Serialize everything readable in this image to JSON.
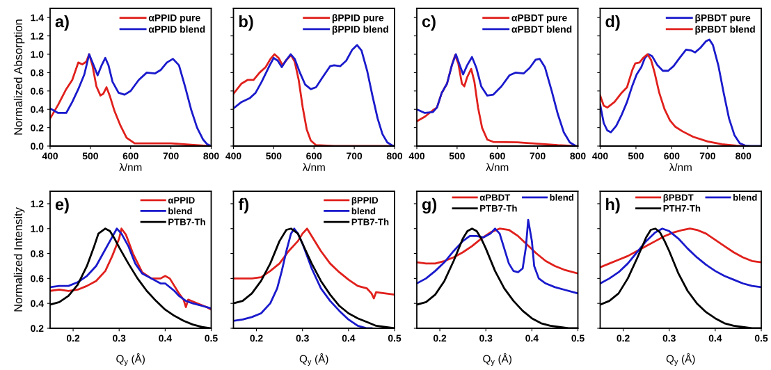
{
  "chart_data": [
    {
      "type": "line",
      "annotations": [
        "a)"
      ],
      "xlabel": "λ/nm",
      "ylabel": "Normalized Absorption",
      "xlim": [
        400,
        800
      ],
      "xticks": [
        400,
        500,
        600,
        700,
        800
      ],
      "ylim": [
        0,
        1.5
      ],
      "yticks": [
        {
          "value": 0,
          "label": "0.0"
        },
        {
          "value": 0.2,
          "label": "0.2"
        },
        {
          "value": 0.4,
          "label": "0.4"
        },
        {
          "value": 0.6,
          "label": "0.6"
        },
        {
          "value": 0.8,
          "label": "0.8"
        },
        {
          "value": 1.0,
          "label": "1.0"
        },
        {
          "value": 1.2,
          "label": "1.2"
        },
        {
          "value": 1.4,
          "label": "1.4"
        }
      ],
      "legend": "top right",
      "grid": false,
      "series": [
        {
          "name": "αPPID pure",
          "color": "#e0201c",
          "x": [
            400,
            420,
            440,
            455,
            470,
            480,
            490,
            497,
            505,
            515,
            525,
            532,
            540,
            548,
            560,
            575,
            590,
            610,
            650,
            700,
            750,
            800
          ],
          "values": [
            0.3,
            0.45,
            0.62,
            0.72,
            0.91,
            0.89,
            0.92,
            1.0,
            0.88,
            0.65,
            0.55,
            0.57,
            0.64,
            0.55,
            0.38,
            0.22,
            0.09,
            0.03,
            0.03,
            0.03,
            0.015,
            0.0
          ]
        },
        {
          "name": "αPPID blend",
          "color": "#1a1acc",
          "x": [
            400,
            420,
            440,
            455,
            470,
            485,
            497,
            508,
            518,
            528,
            537,
            545,
            555,
            570,
            585,
            600,
            620,
            640,
            660,
            675,
            690,
            705,
            720,
            735,
            750,
            765,
            780,
            790,
            800
          ],
          "values": [
            0.41,
            0.36,
            0.36,
            0.48,
            0.62,
            0.78,
            1.0,
            0.88,
            0.77,
            0.88,
            0.96,
            0.88,
            0.7,
            0.58,
            0.56,
            0.6,
            0.72,
            0.8,
            0.79,
            0.83,
            0.91,
            0.95,
            0.88,
            0.65,
            0.4,
            0.2,
            0.07,
            0.02,
            0.0
          ]
        }
      ]
    },
    {
      "type": "line",
      "annotations": [
        "b)"
      ],
      "xlabel": "λ/nm",
      "xlim": [
        400,
        800
      ],
      "xticks": [
        400,
        500,
        600,
        700,
        800
      ],
      "ylim": [
        0,
        1.5
      ],
      "yticks": [
        0,
        0.2,
        0.4,
        0.6,
        0.8,
        1,
        1.2,
        1.4
      ],
      "tick_labels": "x",
      "legend": "top right",
      "grid": false,
      "series": [
        {
          "name": "βPPID pure",
          "color": "#e0201c",
          "x": [
            400,
            420,
            435,
            450,
            465,
            480,
            492,
            502,
            512,
            522,
            532,
            543,
            552,
            562,
            572,
            582,
            592,
            605,
            650,
            800
          ],
          "values": [
            0.57,
            0.68,
            0.72,
            0.72,
            0.8,
            0.86,
            0.95,
            1.0,
            0.96,
            0.88,
            0.94,
            0.99,
            0.92,
            0.72,
            0.42,
            0.18,
            0.06,
            0.01,
            0.0,
            0.0
          ]
        },
        {
          "name": "βPPID blend",
          "color": "#1a1acc",
          "x": [
            400,
            420,
            440,
            455,
            470,
            490,
            500,
            510,
            520,
            530,
            542,
            552,
            565,
            578,
            592,
            605,
            620,
            640,
            650,
            665,
            680,
            695,
            707,
            718,
            732,
            745,
            758,
            770,
            782,
            795,
            800
          ],
          "values": [
            0.41,
            0.48,
            0.52,
            0.58,
            0.7,
            0.88,
            0.96,
            0.93,
            0.86,
            0.93,
            1.0,
            0.95,
            0.8,
            0.67,
            0.62,
            0.64,
            0.74,
            0.87,
            0.88,
            0.87,
            0.93,
            1.05,
            1.1,
            1.04,
            0.82,
            0.55,
            0.3,
            0.13,
            0.04,
            0.005,
            0.0
          ]
        }
      ]
    },
    {
      "type": "line",
      "annotations": [
        "c)"
      ],
      "xlabel": "λ/nm",
      "xlim": [
        400,
        800
      ],
      "xticks": [
        400,
        500,
        600,
        700,
        800
      ],
      "ylim": [
        0,
        1.5
      ],
      "yticks": [
        0,
        0.2,
        0.4,
        0.6,
        0.8,
        1,
        1.2,
        1.4
      ],
      "tick_labels": "x",
      "legend": "top right",
      "grid": false,
      "series": [
        {
          "name": "αPBDT pure",
          "color": "#e0201c",
          "x": [
            400,
            420,
            440,
            450,
            462,
            475,
            487,
            495,
            503,
            512,
            518,
            525,
            535,
            543,
            552,
            562,
            575,
            590,
            650,
            700,
            750,
            800
          ],
          "values": [
            0.27,
            0.32,
            0.39,
            0.42,
            0.58,
            0.68,
            0.88,
            0.99,
            0.9,
            0.68,
            0.65,
            0.75,
            0.84,
            0.7,
            0.42,
            0.2,
            0.07,
            0.045,
            0.04,
            0.025,
            0.01,
            0.0
          ]
        },
        {
          "name": "αPBDT blend",
          "color": "#1a1acc",
          "x": [
            400,
            420,
            440,
            450,
            462,
            475,
            487,
            497,
            505,
            515,
            525,
            537,
            548,
            560,
            575,
            590,
            610,
            630,
            645,
            665,
            680,
            695,
            705,
            718,
            735,
            750,
            765,
            780,
            795
          ],
          "values": [
            0.4,
            0.36,
            0.37,
            0.42,
            0.58,
            0.68,
            0.88,
            1.0,
            0.9,
            0.78,
            0.88,
            0.97,
            0.85,
            0.65,
            0.55,
            0.56,
            0.65,
            0.77,
            0.8,
            0.79,
            0.85,
            0.94,
            0.95,
            0.86,
            0.6,
            0.35,
            0.15,
            0.04,
            0.0
          ]
        }
      ]
    },
    {
      "type": "line",
      "annotations": [
        "d)"
      ],
      "xlabel": "λ/nm",
      "xlim": [
        400,
        850
      ],
      "xticks": [
        400,
        500,
        600,
        700,
        800
      ],
      "ylim": [
        0,
        1.5
      ],
      "yticks": [
        0,
        0.2,
        0.4,
        0.6,
        0.8,
        1,
        1.2,
        1.4
      ],
      "tick_labels": "x",
      "legend": "top right",
      "grid": false,
      "series": [
        {
          "name": "βPBDT pure",
          "color": "#1a1acc",
          "x": [
            400,
            410,
            420,
            430,
            445,
            460,
            475,
            490,
            502,
            515,
            525,
            535,
            545,
            560,
            575,
            590,
            605,
            620,
            640,
            655,
            665,
            680,
            695,
            705,
            715,
            730,
            745,
            760,
            775,
            790,
            805,
            820,
            850
          ],
          "values": [
            0.45,
            0.25,
            0.17,
            0.15,
            0.22,
            0.34,
            0.48,
            0.66,
            0.78,
            0.86,
            0.96,
            1.0,
            0.98,
            0.88,
            0.82,
            0.82,
            0.87,
            0.95,
            1.05,
            1.04,
            1.02,
            1.07,
            1.14,
            1.16,
            1.1,
            0.88,
            0.58,
            0.3,
            0.12,
            0.03,
            0.005,
            0.0,
            0.0
          ]
        },
        {
          "name": "βPBDT blend",
          "color": "#e0201c",
          "x": [
            400,
            410,
            420,
            440,
            460,
            475,
            490,
            498,
            510,
            520,
            532,
            542,
            552,
            565,
            580,
            595,
            610,
            630,
            660,
            700,
            740,
            780,
            800
          ],
          "values": [
            0.55,
            0.44,
            0.42,
            0.48,
            0.58,
            0.64,
            0.83,
            0.9,
            0.91,
            0.96,
            1.0,
            0.94,
            0.8,
            0.58,
            0.4,
            0.28,
            0.21,
            0.16,
            0.1,
            0.05,
            0.02,
            0.005,
            0.0
          ]
        }
      ]
    },
    {
      "type": "line",
      "annotations": [
        "e)"
      ],
      "xlabel": "Q$_{y}$ (Å)",
      "ylabel": "Normalized Intensity",
      "xlim": [
        0.15,
        0.5
      ],
      "xticks": [
        0.2,
        0.3,
        0.4,
        0.5
      ],
      "ylim": [
        0.2,
        1.3
      ],
      "yticks": [
        0.2,
        0.4,
        0.6,
        0.8,
        {
          "value": 1.0,
          "label": "1.0"
        },
        1.2
      ],
      "legend": "top right",
      "grid": false,
      "series": [
        {
          "name": "αPPID",
          "color": "#e0201c",
          "x": [
            0.15,
            0.17,
            0.19,
            0.21,
            0.23,
            0.25,
            0.27,
            0.285,
            0.3,
            0.305,
            0.315,
            0.33,
            0.35,
            0.37,
            0.39,
            0.4,
            0.41,
            0.43,
            0.44,
            0.445,
            0.45,
            0.47,
            0.49,
            0.5
          ],
          "values": [
            0.5,
            0.51,
            0.5,
            0.51,
            0.54,
            0.58,
            0.66,
            0.78,
            0.92,
            1.0,
            0.95,
            0.8,
            0.65,
            0.6,
            0.6,
            0.62,
            0.6,
            0.48,
            0.43,
            0.37,
            0.43,
            0.4,
            0.37,
            0.35
          ]
        },
        {
          "name": "blend",
          "color": "#1a1acc",
          "x": [
            0.15,
            0.17,
            0.19,
            0.21,
            0.23,
            0.25,
            0.265,
            0.28,
            0.295,
            0.305,
            0.32,
            0.335,
            0.35,
            0.37,
            0.39,
            0.4,
            0.42,
            0.43,
            0.445,
            0.46,
            0.48,
            0.5
          ],
          "values": [
            0.53,
            0.54,
            0.54,
            0.57,
            0.62,
            0.7,
            0.8,
            0.9,
            1.0,
            0.96,
            0.86,
            0.72,
            0.64,
            0.6,
            0.56,
            0.56,
            0.5,
            0.46,
            0.42,
            0.4,
            0.38,
            0.36
          ]
        },
        {
          "name": "PTB7-Th",
          "color": "#000000",
          "x": [
            0.15,
            0.17,
            0.19,
            0.21,
            0.23,
            0.245,
            0.255,
            0.27,
            0.28,
            0.29,
            0.3,
            0.32,
            0.34,
            0.36,
            0.38,
            0.4,
            0.42,
            0.44,
            0.46,
            0.48,
            0.5
          ],
          "values": [
            0.39,
            0.41,
            0.46,
            0.55,
            0.7,
            0.85,
            0.96,
            1.0,
            0.98,
            0.92,
            0.85,
            0.72,
            0.6,
            0.5,
            0.42,
            0.35,
            0.3,
            0.26,
            0.23,
            0.21,
            0.2
          ]
        }
      ]
    },
    {
      "type": "line",
      "annotations": [
        "f)"
      ],
      "xlabel": "Q$_{y}$ (Å)",
      "xlim": [
        0.15,
        0.5
      ],
      "xticks": [
        0.2,
        0.3,
        0.4,
        0.5
      ],
      "ylim": [
        0.2,
        1.3
      ],
      "yticks": [
        0.2,
        0.4,
        0.6,
        0.8,
        1,
        1.2
      ],
      "tick_labels": "x",
      "legend": "top right",
      "grid": false,
      "series": [
        {
          "name": "βPPID",
          "color": "#e0201c",
          "x": [
            0.15,
            0.17,
            0.19,
            0.21,
            0.23,
            0.25,
            0.27,
            0.29,
            0.3,
            0.31,
            0.32,
            0.34,
            0.36,
            0.38,
            0.4,
            0.42,
            0.44,
            0.45,
            0.455,
            0.46,
            0.48,
            0.5
          ],
          "values": [
            0.6,
            0.6,
            0.6,
            0.61,
            0.66,
            0.72,
            0.82,
            0.9,
            0.96,
            1.0,
            0.94,
            0.82,
            0.72,
            0.65,
            0.59,
            0.54,
            0.52,
            0.48,
            0.44,
            0.49,
            0.48,
            0.47
          ]
        },
        {
          "name": "blend",
          "color": "#1a1acc",
          "x": [
            0.15,
            0.17,
            0.19,
            0.21,
            0.23,
            0.245,
            0.255,
            0.265,
            0.275,
            0.282,
            0.29,
            0.3,
            0.31,
            0.32,
            0.34,
            0.36,
            0.38,
            0.4,
            0.42,
            0.44,
            0.45
          ],
          "values": [
            0.26,
            0.27,
            0.29,
            0.32,
            0.4,
            0.52,
            0.66,
            0.82,
            0.96,
            1.0,
            0.96,
            0.88,
            0.78,
            0.68,
            0.52,
            0.42,
            0.34,
            0.27,
            0.22,
            0.2,
            0.2
          ]
        },
        {
          "name": "PTB7-Th",
          "color": "#000000",
          "x": [
            0.15,
            0.17,
            0.19,
            0.21,
            0.23,
            0.25,
            0.265,
            0.275,
            0.29,
            0.3,
            0.32,
            0.34,
            0.36,
            0.38,
            0.4,
            0.42,
            0.44,
            0.46,
            0.48,
            0.5
          ],
          "values": [
            0.4,
            0.42,
            0.48,
            0.58,
            0.72,
            0.9,
            0.99,
            1.0,
            0.96,
            0.88,
            0.72,
            0.58,
            0.47,
            0.38,
            0.32,
            0.28,
            0.25,
            0.22,
            0.21,
            0.2
          ]
        }
      ]
    },
    {
      "type": "line",
      "annotations": [
        "g)"
      ],
      "xlabel": "Q$_{y}$ (Å)",
      "xlim": [
        0.15,
        0.5
      ],
      "xticks": [
        0.2,
        0.3,
        0.4,
        0.5
      ],
      "ylim": [
        0.2,
        1.3
      ],
      "yticks": [
        0.2,
        0.4,
        0.6,
        0.8,
        1,
        1.2
      ],
      "tick_labels": "x",
      "legend": "top",
      "grid": false,
      "series": [
        {
          "name": "αPBDT",
          "color": "#e0201c",
          "x": [
            0.15,
            0.17,
            0.19,
            0.21,
            0.23,
            0.25,
            0.27,
            0.29,
            0.31,
            0.33,
            0.35,
            0.37,
            0.39,
            0.41,
            0.43,
            0.45,
            0.47,
            0.5
          ],
          "values": [
            0.73,
            0.72,
            0.72,
            0.74,
            0.77,
            0.81,
            0.86,
            0.92,
            0.97,
            1.0,
            0.99,
            0.94,
            0.87,
            0.8,
            0.74,
            0.7,
            0.67,
            0.64
          ]
        },
        {
          "name": "blend",
          "color": "#1a1acc",
          "x": [
            0.15,
            0.17,
            0.19,
            0.21,
            0.23,
            0.25,
            0.265,
            0.28,
            0.295,
            0.31,
            0.32,
            0.33,
            0.34,
            0.35,
            0.36,
            0.37,
            0.38,
            0.387,
            0.392,
            0.4,
            0.405,
            0.415,
            0.43,
            0.45,
            0.47,
            0.5
          ],
          "values": [
            0.56,
            0.6,
            0.66,
            0.73,
            0.82,
            0.9,
            0.94,
            0.94,
            0.93,
            0.96,
            1.0,
            0.96,
            0.84,
            0.72,
            0.66,
            0.65,
            0.68,
            0.85,
            1.07,
            0.9,
            0.7,
            0.6,
            0.56,
            0.53,
            0.51,
            0.48
          ]
        },
        {
          "name": "PTB7-Th",
          "color": "#000000",
          "x": [
            0.15,
            0.17,
            0.19,
            0.21,
            0.23,
            0.25,
            0.26,
            0.27,
            0.28,
            0.29,
            0.3,
            0.32,
            0.34,
            0.36,
            0.38,
            0.4,
            0.42,
            0.44,
            0.46,
            0.48,
            0.5
          ],
          "values": [
            0.39,
            0.41,
            0.47,
            0.58,
            0.74,
            0.92,
            0.98,
            1.0,
            0.98,
            0.92,
            0.84,
            0.66,
            0.52,
            0.42,
            0.34,
            0.28,
            0.24,
            0.22,
            0.21,
            0.2,
            0.2
          ]
        }
      ]
    },
    {
      "type": "line",
      "annotations": [
        "h)"
      ],
      "xlabel": "Q$_{y}$ (Å)",
      "xlim": [
        0.15,
        0.5
      ],
      "xticks": [
        0.2,
        0.3,
        0.4,
        0.5
      ],
      "ylim": [
        0.2,
        1.3
      ],
      "yticks": [
        0.2,
        0.4,
        0.6,
        0.8,
        1,
        1.2
      ],
      "tick_labels": "x",
      "legend": "top",
      "grid": false,
      "series": [
        {
          "name": "βPBDT",
          "color": "#e0201c",
          "x": [
            0.15,
            0.17,
            0.19,
            0.21,
            0.23,
            0.25,
            0.27,
            0.29,
            0.31,
            0.33,
            0.345,
            0.36,
            0.38,
            0.4,
            0.42,
            0.44,
            0.46,
            0.48,
            0.5
          ],
          "values": [
            0.69,
            0.72,
            0.75,
            0.78,
            0.82,
            0.86,
            0.9,
            0.94,
            0.97,
            0.99,
            1.0,
            0.99,
            0.96,
            0.91,
            0.86,
            0.81,
            0.77,
            0.74,
            0.73
          ]
        },
        {
          "name": "blend",
          "color": "#1a1acc",
          "x": [
            0.15,
            0.17,
            0.19,
            0.21,
            0.23,
            0.25,
            0.27,
            0.285,
            0.3,
            0.32,
            0.34,
            0.36,
            0.38,
            0.4,
            0.42,
            0.44,
            0.46,
            0.48,
            0.5
          ],
          "values": [
            0.56,
            0.6,
            0.65,
            0.72,
            0.81,
            0.9,
            0.97,
            1.0,
            0.98,
            0.92,
            0.84,
            0.77,
            0.71,
            0.66,
            0.62,
            0.59,
            0.56,
            0.54,
            0.53
          ]
        },
        {
          "name": "PTH7-Th",
          "color": "#000000",
          "x": [
            0.15,
            0.17,
            0.19,
            0.21,
            0.23,
            0.25,
            0.26,
            0.27,
            0.28,
            0.29,
            0.3,
            0.32,
            0.34,
            0.36,
            0.38,
            0.4,
            0.42,
            0.44,
            0.46,
            0.48,
            0.5
          ],
          "values": [
            0.39,
            0.42,
            0.48,
            0.6,
            0.76,
            0.93,
            0.99,
            1.0,
            0.97,
            0.9,
            0.82,
            0.64,
            0.5,
            0.4,
            0.33,
            0.28,
            0.24,
            0.22,
            0.21,
            0.2,
            0.2
          ]
        }
      ]
    }
  ]
}
